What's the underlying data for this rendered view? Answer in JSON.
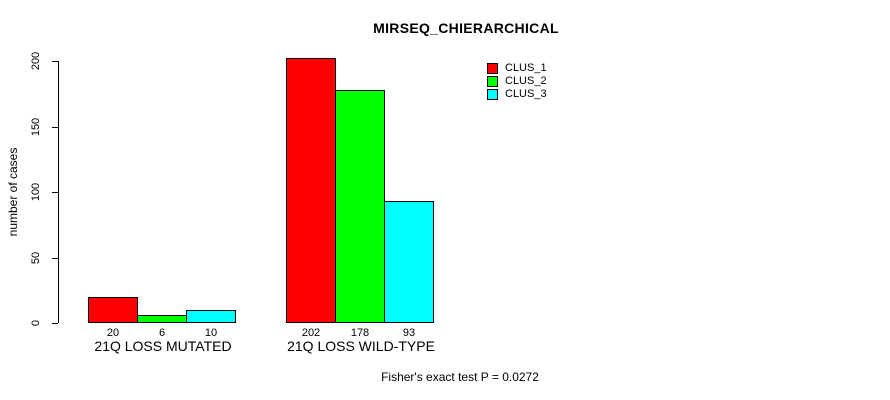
{
  "colors": {
    "background": "#ffffff",
    "axis": "#000000",
    "text": "#000000",
    "clus_1": "#ff0000",
    "clus_2": "#00ff00",
    "clus_3": "#00ffff"
  },
  "chart_data": {
    "type": "bar",
    "title": "MIRSEQ_CHIERARCHICAL",
    "xlabel": "",
    "ylabel": "number of cases",
    "categories": [
      "21Q LOSS MUTATED",
      "21Q LOSS WILD-TYPE"
    ],
    "series": [
      {
        "name": "CLUS_1",
        "color": "#ff0000",
        "values": [
          20,
          202
        ]
      },
      {
        "name": "CLUS_2",
        "color": "#00ff00",
        "values": [
          6,
          178
        ]
      },
      {
        "name": "CLUS_3",
        "color": "#00ffff",
        "values": [
          10,
          93
        ]
      }
    ],
    "bar_value_labels": [
      [
        "20",
        "6",
        "10"
      ],
      [
        "202",
        "178",
        "93"
      ]
    ],
    "yticks": [
      "0",
      "50",
      "100",
      "150",
      "200"
    ],
    "ytick_values": [
      0,
      50,
      100,
      150,
      200
    ],
    "ylim": [
      0,
      200
    ],
    "grid": false,
    "legend_position": "top-right",
    "legend_entries": [
      "CLUS_1",
      "CLUS_2",
      "CLUS_3"
    ],
    "annotation": "Fisher's exact test P = 0.0272"
  }
}
